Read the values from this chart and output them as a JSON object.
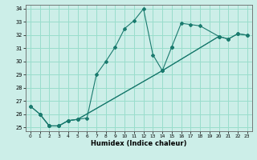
{
  "xlabel": "Humidex (Indice chaleur)",
  "background_color": "#cceee8",
  "grid_color": "#99ddcc",
  "line_color": "#1a7a6e",
  "xlim": [
    -0.5,
    23.5
  ],
  "ylim": [
    24.7,
    34.3
  ],
  "xticks": [
    0,
    1,
    2,
    3,
    4,
    5,
    6,
    7,
    8,
    9,
    10,
    11,
    12,
    13,
    14,
    15,
    16,
    17,
    18,
    19,
    20,
    21,
    22,
    23
  ],
  "yticks": [
    25,
    26,
    27,
    28,
    29,
    30,
    31,
    32,
    33,
    34
  ],
  "series1_x": [
    0,
    1,
    2,
    3,
    4,
    5,
    6,
    7,
    8,
    9,
    10,
    11,
    12,
    13,
    14,
    15
  ],
  "series1_y": [
    26.6,
    26.0,
    25.1,
    25.1,
    25.5,
    25.6,
    25.7,
    29.0,
    30.0,
    31.1,
    32.5,
    33.1,
    34.0,
    30.5,
    29.3,
    31.1
  ],
  "series2_x": [
    15,
    16,
    17,
    18,
    20
  ],
  "series2_y": [
    31.1,
    32.9,
    32.8,
    32.7,
    31.9
  ],
  "series3_x": [
    0,
    1,
    2,
    3,
    4,
    5,
    14,
    20,
    21,
    22,
    23
  ],
  "series3_y": [
    26.6,
    26.0,
    25.1,
    25.1,
    25.5,
    25.6,
    29.3,
    31.9,
    31.7,
    32.1,
    32.0
  ],
  "series4_x": [
    1,
    2,
    3,
    4,
    5,
    14,
    20,
    21,
    22,
    23
  ],
  "series4_y": [
    26.0,
    25.1,
    25.1,
    25.5,
    25.6,
    29.3,
    31.9,
    31.7,
    32.1,
    32.0
  ]
}
